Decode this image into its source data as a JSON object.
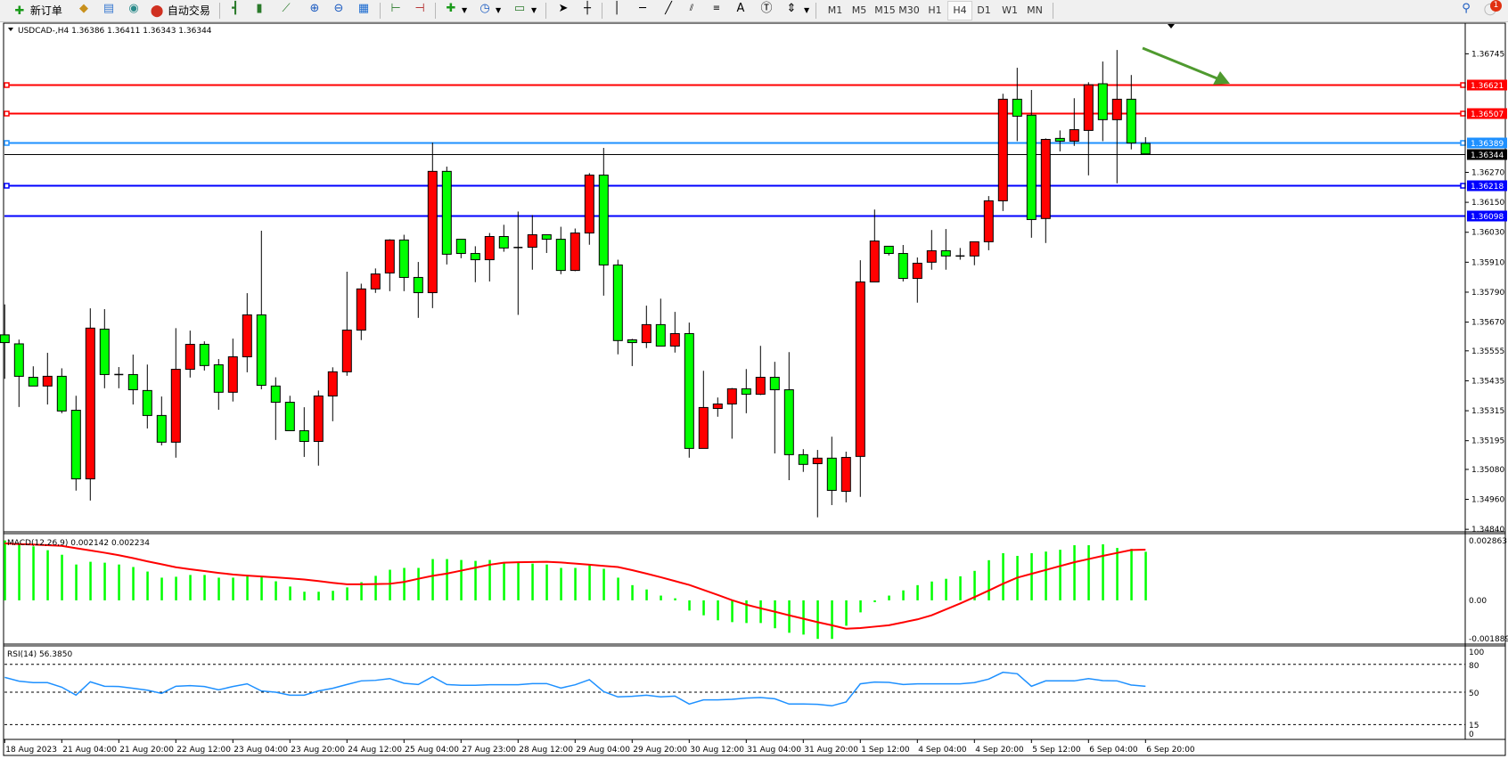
{
  "toolbar": {
    "new_order_label": "新订单",
    "auto_trading_label": "自动交易",
    "timeframes": [
      "M1",
      "M5",
      "M15",
      "M30",
      "H1",
      "H4",
      "D1",
      "W1",
      "MN"
    ],
    "selected_timeframe": "H4",
    "notification_count": "1"
  },
  "chart": {
    "header": "USDCAD-,H4  1.36386 1.36411 1.36343 1.36344",
    "symbol": "USDCAD-",
    "period": "H4",
    "ohlc": {
      "open": 1.36386,
      "high": 1.36411,
      "low": 1.36343,
      "close": 1.36344
    },
    "bull_color": "#ff0000",
    "bear_color": "#00ff00",
    "price_ticks": [
      "1.36745",
      "1.36270",
      "1.36150",
      "1.36030",
      "1.35910",
      "1.35790",
      "1.35670",
      "1.35555",
      "1.35435",
      "1.35315",
      "1.35195",
      "1.35080",
      "1.34960",
      "1.34840"
    ],
    "hlines": [
      {
        "price": "1.36621",
        "color": "#ff0000"
      },
      {
        "price": "1.36507",
        "color": "#ff0000"
      },
      {
        "price": "1.36389",
        "color": "#1e90ff"
      },
      {
        "price": "1.36344",
        "color": "#000000"
      },
      {
        "price": "1.36218",
        "color": "#0000ff"
      },
      {
        "price": "1.36098",
        "color": "#0000ff"
      }
    ],
    "arrow_color": "#4f9a2f",
    "date_labels": [
      "18 Aug 2023",
      "21 Aug 04:00",
      "21 Aug 20:00",
      "22 Aug 12:00",
      "23 Aug 04:00",
      "23 Aug 20:00",
      "24 Aug 12:00",
      "25 Aug 04:00",
      "27 Aug 23:00",
      "28 Aug 12:00",
      "29 Aug 04:00",
      "29 Aug 20:00",
      "30 Aug 12:00",
      "31 Aug 04:00",
      "31 Aug 20:00",
      "1 Sep 12:00",
      "4 Sep 04:00",
      "4 Sep 20:00",
      "5 Sep 12:00",
      "6 Sep 04:00",
      "6 Sep 20:00"
    ]
  },
  "macd": {
    "label": "MACD(12,26,9) 0.002142 0.002234",
    "scale_max": "0.002863",
    "scale_zero": "0.00",
    "scale_min": "-0.001889"
  },
  "rsi": {
    "label": "RSI(14) 56.3850",
    "levels": [
      "100",
      "80",
      "50",
      "15",
      "0"
    ]
  },
  "chart_data": [
    {
      "type": "candlestick",
      "title": "USDCAD-,H4",
      "ylim": [
        1.34837,
        1.36857
      ],
      "ohlc": [
        [
          1.35619,
          1.35741,
          1.35443,
          1.35588
        ],
        [
          1.35583,
          1.356,
          1.3533,
          1.35453
        ],
        [
          1.35449,
          1.35493,
          1.35414,
          1.35414
        ],
        [
          1.35414,
          1.35547,
          1.3534,
          1.35453
        ],
        [
          1.35453,
          1.35485,
          1.35305,
          1.35314
        ],
        [
          1.35317,
          1.35375,
          1.34995,
          1.35042
        ],
        [
          1.35042,
          1.35725,
          1.34955,
          1.35646
        ],
        [
          1.35642,
          1.35722,
          1.35405,
          1.3546
        ],
        [
          1.3546,
          1.3549,
          1.35405,
          1.3546
        ],
        [
          1.3546,
          1.3554,
          1.3534,
          1.35399
        ],
        [
          1.35396,
          1.355,
          1.35244,
          1.35296
        ],
        [
          1.35296,
          1.35372,
          1.35176,
          1.35189
        ],
        [
          1.35189,
          1.35646,
          1.35127,
          1.35481
        ],
        [
          1.35481,
          1.35636,
          1.35448,
          1.35581
        ],
        [
          1.35581,
          1.35593,
          1.35476,
          1.35496
        ],
        [
          1.35499,
          1.35522,
          1.35319,
          1.35389
        ],
        [
          1.35389,
          1.35604,
          1.35352,
          1.35531
        ],
        [
          1.35531,
          1.35786,
          1.35469,
          1.35699
        ],
        [
          1.35699,
          1.36036,
          1.35401,
          1.35417
        ],
        [
          1.35414,
          1.35449,
          1.35198,
          1.35349
        ],
        [
          1.35349,
          1.35375,
          1.35235,
          1.35235
        ],
        [
          1.35235,
          1.35329,
          1.3513,
          1.35192
        ],
        [
          1.35192,
          1.35396,
          1.35095,
          1.35374
        ],
        [
          1.35374,
          1.35489,
          1.35273,
          1.35471
        ],
        [
          1.35471,
          1.35872,
          1.35455,
          1.35638
        ],
        [
          1.35638,
          1.35824,
          1.35598,
          1.35803
        ],
        [
          1.35803,
          1.35885,
          1.35787,
          1.35863
        ],
        [
          1.35867,
          1.36002,
          1.35794,
          1.35999
        ],
        [
          1.35999,
          1.3602,
          1.35794,
          1.35849
        ],
        [
          1.35849,
          1.35911,
          1.35687,
          1.35788
        ],
        [
          1.35788,
          1.36389,
          1.35726,
          1.36274
        ],
        [
          1.36274,
          1.36293,
          1.35901,
          1.35942
        ],
        [
          1.36002,
          1.36002,
          1.35926,
          1.35945
        ],
        [
          1.35945,
          1.35974,
          1.3583,
          1.3592
        ],
        [
          1.3592,
          1.36027,
          1.35833,
          1.36013
        ],
        [
          1.36013,
          1.3606,
          1.35952,
          1.35967
        ],
        [
          1.35969,
          1.36113,
          1.35699,
          1.35969
        ],
        [
          1.3597,
          1.36099,
          1.3588,
          1.3602
        ],
        [
          1.3602,
          1.3602,
          1.35947,
          1.36002
        ],
        [
          1.36002,
          1.36052,
          1.35862,
          1.35877
        ],
        [
          1.35877,
          1.36045,
          1.35874,
          1.36027
        ],
        [
          1.36027,
          1.36267,
          1.3598,
          1.36259
        ],
        [
          1.36259,
          1.36368,
          1.35776,
          1.35899
        ],
        [
          1.35899,
          1.3592,
          1.35541,
          1.35596
        ],
        [
          1.35599,
          1.35603,
          1.35494,
          1.35588
        ],
        [
          1.35588,
          1.35736,
          1.35566,
          1.3566
        ],
        [
          1.3566,
          1.35764,
          1.35574,
          1.35574
        ],
        [
          1.35574,
          1.35711,
          1.35548,
          1.35624
        ],
        [
          1.35624,
          1.35668,
          1.35127,
          1.35164
        ],
        [
          1.35164,
          1.35475,
          1.35164,
          1.35328
        ],
        [
          1.35324,
          1.35368,
          1.35291,
          1.35342
        ],
        [
          1.35342,
          1.35406,
          1.35203,
          1.35403
        ],
        [
          1.35403,
          1.35482,
          1.35305,
          1.35381
        ],
        [
          1.35381,
          1.35575,
          1.35378,
          1.35449
        ],
        [
          1.35449,
          1.35511,
          1.35144,
          1.35399
        ],
        [
          1.35399,
          1.3555,
          1.35037,
          1.35139
        ],
        [
          1.35139,
          1.35161,
          1.3507,
          1.351
        ],
        [
          1.35103,
          1.35158,
          1.34888,
          1.35125
        ],
        [
          1.35125,
          1.35211,
          1.34937,
          1.34996
        ],
        [
          1.34992,
          1.35151,
          1.34948,
          1.35128
        ],
        [
          1.35132,
          1.35918,
          1.3497,
          1.35831
        ],
        [
          1.35831,
          1.36121,
          1.35831,
          1.35995
        ],
        [
          1.35974,
          1.35974,
          1.35937,
          1.35945
        ],
        [
          1.35945,
          1.35979,
          1.35833,
          1.35845
        ],
        [
          1.35845,
          1.35929,
          1.35748,
          1.35906
        ],
        [
          1.3591,
          1.36039,
          1.3588,
          1.35956
        ],
        [
          1.35956,
          1.36043,
          1.3588,
          1.35935
        ],
        [
          1.35935,
          1.35967,
          1.3592,
          1.35935
        ],
        [
          1.35935,
          1.35992,
          1.35898,
          1.35992
        ],
        [
          1.35992,
          1.36175,
          1.35958,
          1.36156
        ],
        [
          1.36156,
          1.36585,
          1.36115,
          1.36563
        ],
        [
          1.36563,
          1.36689,
          1.36395,
          1.36495
        ],
        [
          1.36499,
          1.366,
          1.36008,
          1.36081
        ],
        [
          1.36085,
          1.36406,
          1.35987,
          1.36402
        ],
        [
          1.36406,
          1.36438,
          1.36354,
          1.36395
        ],
        [
          1.36395,
          1.36567,
          1.36376,
          1.36441
        ],
        [
          1.36438,
          1.36631,
          1.36258,
          1.36621
        ],
        [
          1.36625,
          1.36714,
          1.36395,
          1.36481
        ],
        [
          1.36481,
          1.3676,
          1.36226,
          1.36563
        ],
        [
          1.36563,
          1.3666,
          1.36362,
          1.36388
        ],
        [
          1.36386,
          1.36411,
          1.36343,
          1.36344
        ]
      ]
    },
    {
      "type": "bar",
      "title": "MACD(12,26,9)",
      "ylim": [
        -0.001889,
        0.002863
      ],
      "series": [
        {
          "name": "MACD",
          "type": "bar",
          "color": "#00ff00",
          "values": [
            0.00264,
            0.00251,
            0.00238,
            0.00221,
            0.00201,
            0.00158,
            0.0017,
            0.00166,
            0.00158,
            0.00147,
            0.00127,
            0.001,
            0.00104,
            0.00112,
            0.00112,
            0.001,
            0.001,
            0.00108,
            0.00104,
            0.00084,
            0.00061,
            0.00038,
            0.00038,
            0.00042,
            0.00057,
            0.0008,
            0.00108,
            0.00135,
            0.00143,
            0.00143,
            0.00182,
            0.00182,
            0.00178,
            0.00174,
            0.00178,
            0.00166,
            0.00166,
            0.00162,
            0.00158,
            0.00143,
            0.00143,
            0.00158,
            0.00139,
            0.001,
            0.00067,
            0.00048,
            0.00021,
            9e-05,
            -0.00045,
            -0.00066,
            -0.00088,
            -0.00096,
            -0.001,
            -0.001,
            -0.00123,
            -0.00143,
            -0.00151,
            -0.0017,
            -0.0017,
            -0.00112,
            -0.00053,
            -8e-05,
            0.00021,
            0.00044,
            0.00067,
            0.00083,
            0.00095,
            0.00106,
            0.0013,
            0.00177,
            0.00208,
            0.00196,
            0.00208,
            0.00215,
            0.00223,
            0.00243,
            0.00243,
            0.00247,
            0.00231,
            0.00227,
            0.002142
          ]
        },
        {
          "name": "Signal",
          "type": "line",
          "color": "#ff0000",
          "values": [
            0.00251,
            0.00248,
            0.00246,
            0.00243,
            0.0024,
            0.0023,
            0.0022,
            0.0021,
            0.00199,
            0.00186,
            0.00172,
            0.00159,
            0.00146,
            0.00137,
            0.00129,
            0.00121,
            0.00114,
            0.00109,
            0.00105,
            0.00101,
            0.00097,
            0.00092,
            0.00085,
            0.00077,
            0.00071,
            0.00071,
            0.00072,
            0.00073,
            0.00081,
            0.00095,
            0.00108,
            0.00118,
            0.00131,
            0.00144,
            0.00157,
            0.00166,
            0.00168,
            0.00169,
            0.0017,
            0.00167,
            0.00162,
            0.00157,
            0.00152,
            0.00147,
            0.00133,
            0.00118,
            0.00102,
            0.00085,
            0.00068,
            0.00046,
            0.00024,
            1e-05,
            -0.00019,
            -0.00035,
            -0.0005,
            -0.00066,
            -0.00081,
            -0.00096,
            -0.0011,
            -0.00125,
            -0.00122,
            -0.00116,
            -0.0011,
            -0.00097,
            -0.00084,
            -0.00066,
            -0.0004,
            -0.00014,
            0.00014,
            0.00043,
            0.00073,
            0.001,
            0.00117,
            0.00134,
            0.00151,
            0.00168,
            0.00182,
            0.00196,
            0.00209,
            0.00222,
            0.002234
          ]
        }
      ]
    },
    {
      "type": "line",
      "title": "RSI(14)",
      "ylim": [
        0,
        100
      ],
      "levels": [
        80,
        50,
        15
      ],
      "series": [
        {
          "name": "RSI",
          "color": "#1e90ff",
          "values": [
            66.0,
            61.9,
            60.3,
            60.3,
            55.4,
            46.8,
            61.2,
            56.4,
            56.1,
            54.2,
            52.2,
            48.7,
            56.4,
            57.1,
            56.1,
            52.6,
            56.1,
            59.0,
            51.3,
            50.0,
            46.8,
            46.8,
            51.3,
            54.2,
            58.3,
            62.2,
            62.8,
            64.7,
            59.6,
            58.3,
            66.7,
            58.3,
            57.4,
            57.4,
            58.0,
            58.0,
            58.0,
            59.3,
            59.3,
            54.5,
            58.0,
            63.5,
            50.6,
            44.9,
            45.5,
            46.8,
            44.9,
            45.8,
            37.2,
            41.7,
            41.7,
            42.3,
            43.6,
            44.2,
            42.9,
            37.2,
            37.2,
            36.9,
            35.3,
            39.4,
            59.0,
            60.9,
            60.6,
            58.3,
            59.0,
            59.0,
            59.0,
            59.0,
            60.3,
            64.1,
            71.5,
            69.9,
            56.4,
            62.2,
            62.2,
            62.2,
            64.7,
            62.5,
            62.2,
            57.7,
            56.385
          ]
        }
      ]
    }
  ]
}
